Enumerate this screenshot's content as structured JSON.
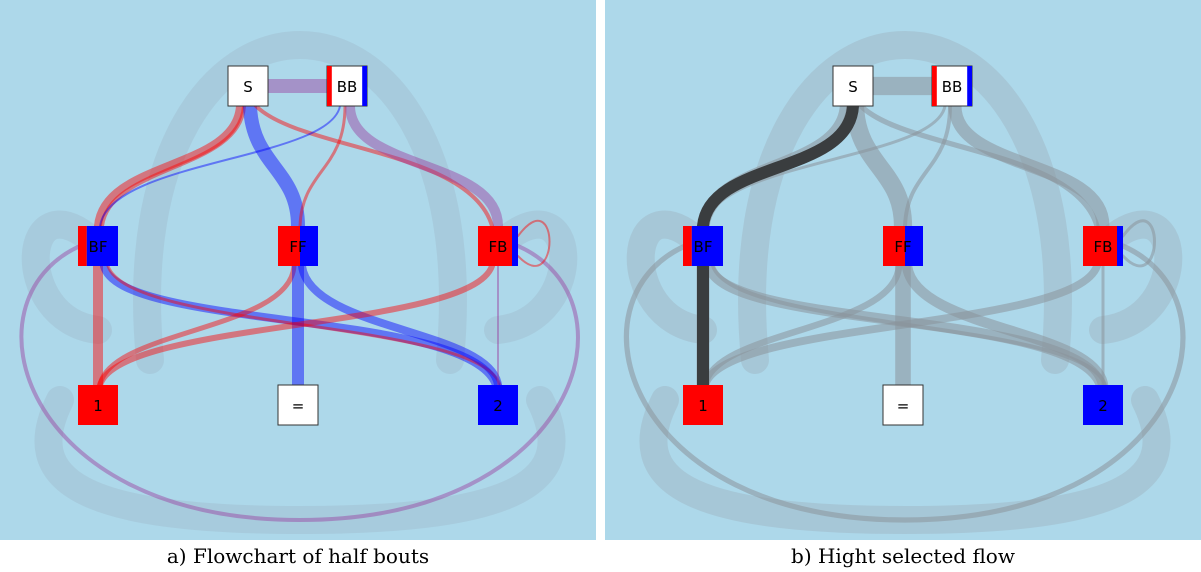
{
  "panels": [
    {
      "id": "a",
      "caption": "a) Flowchart of half bouts",
      "mode": "color",
      "highlight": null
    },
    {
      "id": "b",
      "caption": "b) Hight selected flow",
      "mode": "gray",
      "highlight": [
        "S",
        "BF",
        "1"
      ]
    }
  ],
  "nodes": [
    {
      "id": "S",
      "label": "S",
      "fill": "white",
      "red_frac": 0,
      "blue_frac": 0
    },
    {
      "id": "BB",
      "label": "BB",
      "fill": "white",
      "red_frac": 0.12,
      "blue_frac": 0.12
    },
    {
      "id": "BF",
      "label": "BF",
      "fill": "split",
      "red_frac": 0.22,
      "blue_frac": 0.78
    },
    {
      "id": "FF",
      "label": "FF",
      "fill": "split",
      "red_frac": 0.55,
      "blue_frac": 0.45
    },
    {
      "id": "FB",
      "label": "FB",
      "fill": "split",
      "red_frac": 0.85,
      "blue_frac": 0.15
    },
    {
      "id": "1",
      "label": "1",
      "fill": "red"
    },
    {
      "id": "=",
      "label": "=",
      "fill": "white"
    },
    {
      "id": "2",
      "label": "2",
      "fill": "blue"
    }
  ],
  "colors": {
    "red": "#ff0000",
    "blue": "#0000ff",
    "background": "#add8ea",
    "flow_gray": "#8a949a",
    "highlight": "#3a3d3f"
  }
}
